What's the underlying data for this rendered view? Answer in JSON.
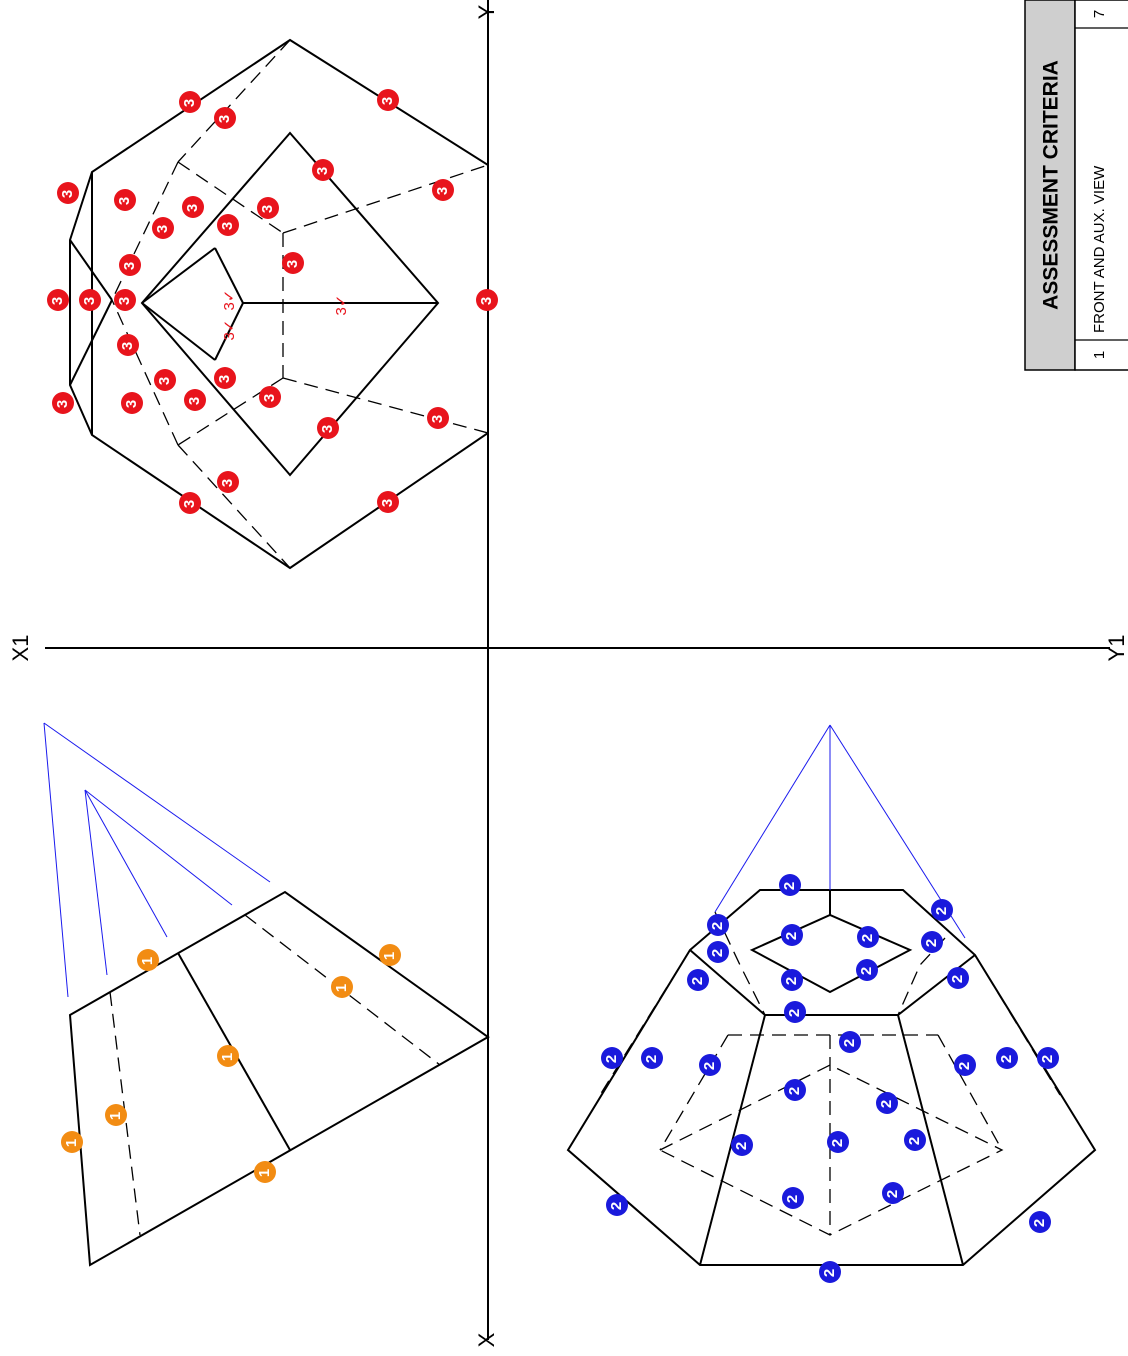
{
  "axes": {
    "x": "X",
    "y": "Y",
    "x1": "X1",
    "y1": "Y1"
  },
  "markers": [
    {
      "label": "1"
    },
    {
      "label": "2"
    },
    {
      "label": "3"
    }
  ],
  "check_label": "3✓",
  "table": {
    "title": "ASSESSMENT CRITERIA",
    "rows": [
      [
        "1",
        "FRONT AND AUX. VIEW",
        "7"
      ]
    ]
  }
}
